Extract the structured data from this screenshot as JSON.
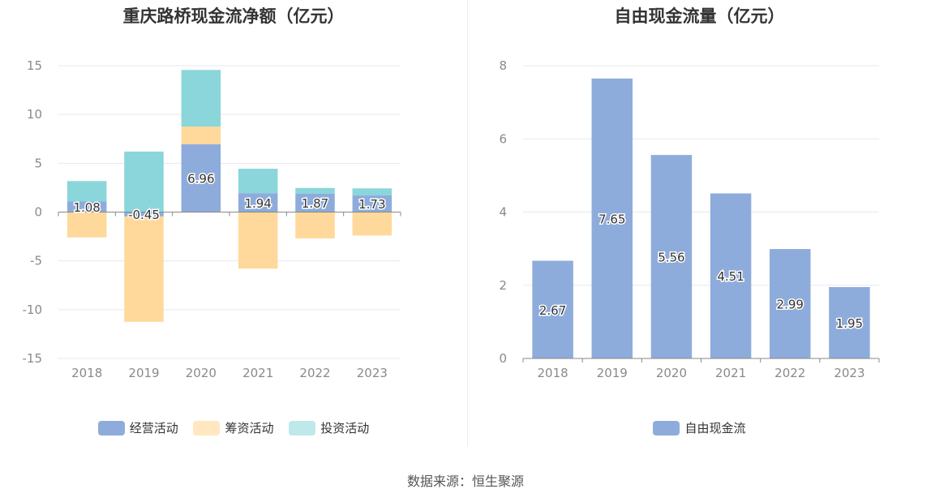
{
  "source_text": "数据来源：恒生聚源",
  "chart_data": [
    {
      "type": "bar",
      "stacked": true,
      "title": "重庆路桥现金流净额（亿元）",
      "categories": [
        "2018",
        "2019",
        "2020",
        "2021",
        "2022",
        "2023"
      ],
      "ylim": [
        -15,
        15
      ],
      "yticks": [
        15,
        10,
        5,
        0,
        -5,
        -10,
        -15
      ],
      "grid": true,
      "legend_position": "bottom",
      "series": [
        {
          "name": "经营活动",
          "color": "#8eacdb",
          "values": [
            1.08,
            -0.45,
            6.96,
            1.94,
            1.87,
            1.73
          ],
          "labeled": true
        },
        {
          "name": "筹资活动",
          "color": "#ffd99b",
          "values": [
            -2.6,
            -10.8,
            1.8,
            -5.8,
            -2.7,
            -2.4
          ],
          "labeled": false
        },
        {
          "name": "投资活动",
          "color": "#8ad6da",
          "values": [
            2.1,
            6.2,
            5.8,
            2.5,
            0.6,
            0.7
          ],
          "labeled": false
        }
      ]
    },
    {
      "type": "bar",
      "stacked": false,
      "title": "自由现金流量（亿元）",
      "categories": [
        "2018",
        "2019",
        "2020",
        "2021",
        "2022",
        "2023"
      ],
      "ylim": [
        0,
        8
      ],
      "yticks": [
        8,
        6,
        4,
        2,
        0
      ],
      "grid": true,
      "legend_position": "bottom",
      "series": [
        {
          "name": "自由现金流",
          "color": "#8eacdb",
          "values": [
            2.67,
            7.65,
            5.56,
            4.51,
            2.99,
            1.95
          ],
          "labeled": true
        }
      ]
    }
  ]
}
